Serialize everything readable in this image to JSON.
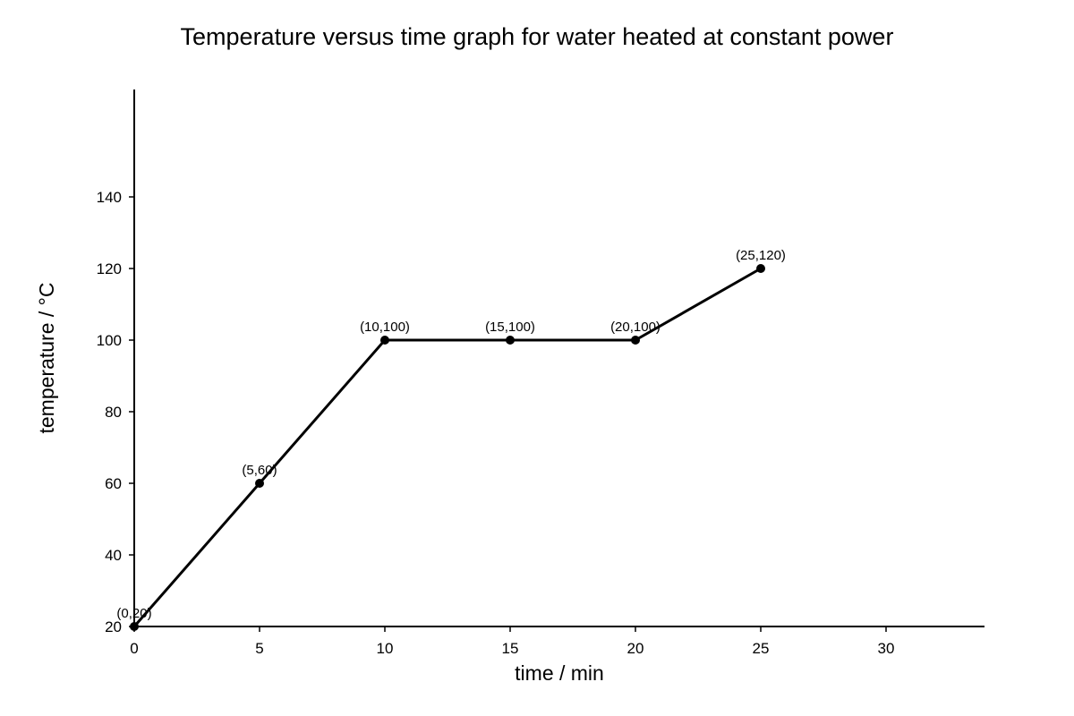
{
  "chart_data": {
    "type": "line",
    "title": "Temperature versus time graph for water heated at constant power",
    "xlabel": "time / min",
    "ylabel": "temperature / °C",
    "xlim": [
      0,
      34
    ],
    "ylim": [
      20,
      170
    ],
    "x_ticks": [
      0,
      5,
      10,
      15,
      20,
      25,
      30
    ],
    "y_ticks": [
      20,
      40,
      60,
      80,
      100,
      120,
      140
    ],
    "grid": false,
    "legend": "none",
    "line_color": "#000000",
    "series": [
      {
        "x": [
          0,
          5,
          10,
          15,
          20,
          25
        ],
        "y": [
          20,
          60,
          100,
          100,
          100,
          120
        ],
        "point_labels": [
          "(0,20)",
          "(5,60)",
          "(10,100)",
          "(15,100)",
          "(20,100)",
          "(25,120)"
        ]
      }
    ]
  }
}
